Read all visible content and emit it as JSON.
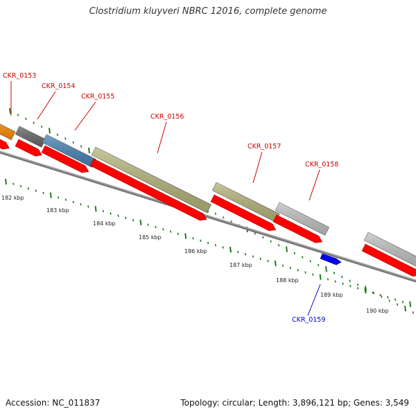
{
  "title": "Clostridium kluyveri NBRC 12016, complete genome",
  "footer": {
    "accession": "Accession: NC_011837",
    "summary": "Topology: circular; Length: 3,896,121 bp; Genes: 3,549"
  },
  "colors": {
    "tick": "#1a7a1a",
    "backbone": "#777777",
    "cds_arrow": "#ff0000",
    "label_forward": "#cc0000",
    "label_reverse": "#0000cc",
    "minus_cds": "#0000ee"
  },
  "scale_labels": [
    "182 kbp",
    "183 kbp",
    "184 kbp",
    "185 kbp",
    "186 kbp",
    "187 kbp",
    "188 kbp",
    "189 kbp",
    "190 kbp"
  ],
  "gene_labels": [
    {
      "name": "CKR_0153",
      "strand": "forward"
    },
    {
      "name": "CKR_0154",
      "strand": "forward"
    },
    {
      "name": "CKR_0155",
      "strand": "forward"
    },
    {
      "name": "CKR_0156",
      "strand": "forward"
    },
    {
      "name": "CKR_0157",
      "strand": "forward"
    },
    {
      "name": "CKR_0158",
      "strand": "forward"
    },
    {
      "name": "CKR_0159",
      "strand": "reverse"
    }
  ],
  "feature_bars": [
    {
      "gene": "CKR_0153",
      "color": "#ff8c00"
    },
    {
      "gene": "CKR_0154",
      "color": "#666666"
    },
    {
      "gene": "CKR_0155",
      "color": "#4682b4"
    },
    {
      "gene": "CKR_0156",
      "color": "#b5b37a"
    },
    {
      "gene": "CKR_0157",
      "color": "#b5b37a"
    },
    {
      "gene": "CKR_0158",
      "color": "#c0c0c0"
    },
    {
      "gene": "unlabeled",
      "color": "#c0c0c0"
    }
  ]
}
